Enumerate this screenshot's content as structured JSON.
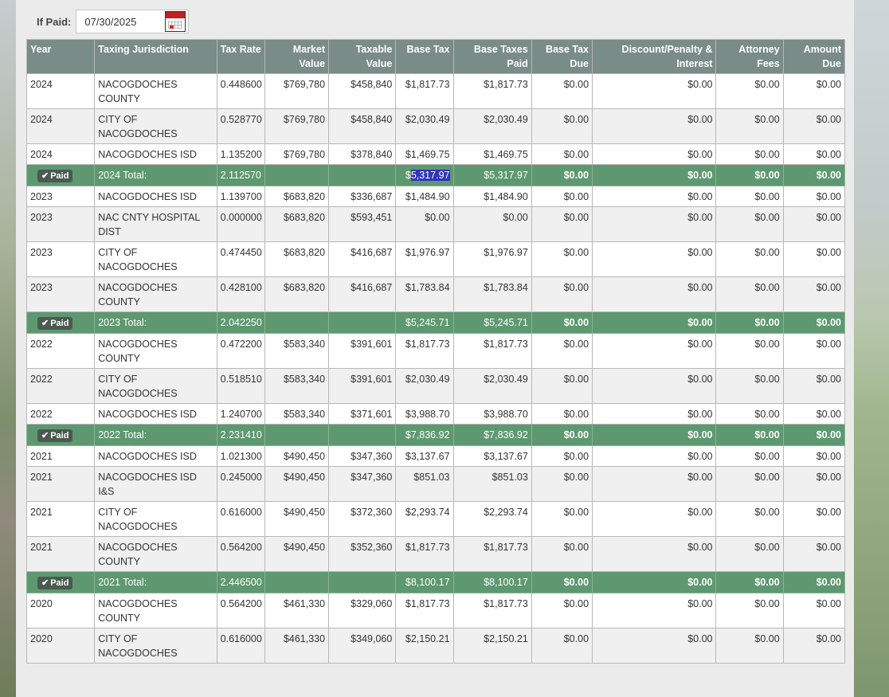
{
  "if_paid": {
    "label": "If Paid:",
    "date": "07/30/2025"
  },
  "columns": [
    "Year",
    "Taxing Jurisdiction",
    "Tax Rate",
    "Market Value",
    "Taxable Value",
    "Base Tax",
    "Base Taxes Paid",
    "Base Tax Due",
    "Discount/Penalty & Interest",
    "Attorney Fees",
    "Amount Due"
  ],
  "column_lines": [
    [
      "Year"
    ],
    [
      "Taxing Jurisdiction"
    ],
    [
      "Tax Rate"
    ],
    [
      "Market",
      "Value"
    ],
    [
      "Taxable",
      "Value"
    ],
    [
      "Base Tax"
    ],
    [
      "Base Taxes",
      "Paid"
    ],
    [
      "Base Tax",
      "Due"
    ],
    [
      "Discount/Penalty &",
      "Interest"
    ],
    [
      "Attorney",
      "Fees"
    ],
    [
      "Amount",
      "Due"
    ]
  ],
  "paid_badge": "Paid",
  "rows": [
    {
      "type": "data",
      "cells": [
        "2024",
        "NACOGDOCHES COUNTY",
        "0.448600",
        "$769,780",
        "$458,840",
        "$1,817.73",
        "$1,817.73",
        "$0.00",
        "$0.00",
        "$0.00",
        "$0.00"
      ]
    },
    {
      "type": "data",
      "cells": [
        "2024",
        "CITY OF NACOGDOCHES",
        "0.528770",
        "$769,780",
        "$458,840",
        "$2,030.49",
        "$2,030.49",
        "$0.00",
        "$0.00",
        "$0.00",
        "$0.00"
      ]
    },
    {
      "type": "data",
      "cells": [
        "2024",
        "NACOGDOCHES ISD",
        "1.135200",
        "$769,780",
        "$378,840",
        "$1,469.75",
        "$1,469.75",
        "$0.00",
        "$0.00",
        "$0.00",
        "$0.00"
      ]
    },
    {
      "type": "total",
      "cells": [
        "Paid",
        "2024 Total:",
        "2.112570",
        "",
        "",
        "$5,317.97",
        "$5,317.97",
        "$0.00",
        "$0.00",
        "$0.00",
        "$0.00"
      ],
      "highlight": true
    },
    {
      "type": "data",
      "cells": [
        "2023",
        "NACOGDOCHES ISD",
        "1.139700",
        "$683,820",
        "$336,687",
        "$1,484.90",
        "$1,484.90",
        "$0.00",
        "$0.00",
        "$0.00",
        "$0.00"
      ]
    },
    {
      "type": "data",
      "cells": [
        "2023",
        "NAC CNTY HOSPITAL DIST",
        "0.000000",
        "$683,820",
        "$593,451",
        "$0.00",
        "$0.00",
        "$0.00",
        "$0.00",
        "$0.00",
        "$0.00"
      ]
    },
    {
      "type": "data",
      "cells": [
        "2023",
        "CITY OF NACOGDOCHES",
        "0.474450",
        "$683,820",
        "$416,687",
        "$1,976.97",
        "$1,976.97",
        "$0.00",
        "$0.00",
        "$0.00",
        "$0.00"
      ]
    },
    {
      "type": "data",
      "cells": [
        "2023",
        "NACOGDOCHES COUNTY",
        "0.428100",
        "$683,820",
        "$416,687",
        "$1,783.84",
        "$1,783.84",
        "$0.00",
        "$0.00",
        "$0.00",
        "$0.00"
      ]
    },
    {
      "type": "total",
      "cells": [
        "Paid",
        "2023 Total:",
        "2.042250",
        "",
        "",
        "$5,245.71",
        "$5,245.71",
        "$0.00",
        "$0.00",
        "$0.00",
        "$0.00"
      ]
    },
    {
      "type": "data",
      "cells": [
        "2022",
        "NACOGDOCHES COUNTY",
        "0.472200",
        "$583,340",
        "$391,601",
        "$1,817.73",
        "$1,817.73",
        "$0.00",
        "$0.00",
        "$0.00",
        "$0.00"
      ]
    },
    {
      "type": "data",
      "cells": [
        "2022",
        "CITY OF NACOGDOCHES",
        "0.518510",
        "$583,340",
        "$391,601",
        "$2,030.49",
        "$2,030.49",
        "$0.00",
        "$0.00",
        "$0.00",
        "$0.00"
      ]
    },
    {
      "type": "data",
      "cells": [
        "2022",
        "NACOGDOCHES ISD",
        "1.240700",
        "$583,340",
        "$371,601",
        "$3,988.70",
        "$3,988.70",
        "$0.00",
        "$0.00",
        "$0.00",
        "$0.00"
      ]
    },
    {
      "type": "total",
      "cells": [
        "Paid",
        "2022 Total:",
        "2.231410",
        "",
        "",
        "$7,836.92",
        "$7,836.92",
        "$0.00",
        "$0.00",
        "$0.00",
        "$0.00"
      ]
    },
    {
      "type": "data",
      "cells": [
        "2021",
        "NACOGDOCHES ISD",
        "1.021300",
        "$490,450",
        "$347,360",
        "$3,137.67",
        "$3,137.67",
        "$0.00",
        "$0.00",
        "$0.00",
        "$0.00"
      ]
    },
    {
      "type": "data",
      "cells": [
        "2021",
        "NACOGDOCHES ISD I&S",
        "0.245000",
        "$490,450",
        "$347,360",
        "$851.03",
        "$851.03",
        "$0.00",
        "$0.00",
        "$0.00",
        "$0.00"
      ]
    },
    {
      "type": "data",
      "cells": [
        "2021",
        "CITY OF NACOGDOCHES",
        "0.616000",
        "$490,450",
        "$372,360",
        "$2,293.74",
        "$2,293.74",
        "$0.00",
        "$0.00",
        "$0.00",
        "$0.00"
      ]
    },
    {
      "type": "data",
      "cells": [
        "2021",
        "NACOGDOCHES COUNTY",
        "0.564200",
        "$490,450",
        "$352,360",
        "$1,817.73",
        "$1,817.73",
        "$0.00",
        "$0.00",
        "$0.00",
        "$0.00"
      ]
    },
    {
      "type": "total",
      "cells": [
        "Paid",
        "2021 Total:",
        "2.446500",
        "",
        "",
        "$8,100.17",
        "$8,100.17",
        "$0.00",
        "$0.00",
        "$0.00",
        "$0.00"
      ]
    },
    {
      "type": "data",
      "cells": [
        "2020",
        "NACOGDOCHES COUNTY",
        "0.564200",
        "$461,330",
        "$329,060",
        "$1,817.73",
        "$1,817.73",
        "$0.00",
        "$0.00",
        "$0.00",
        "$0.00"
      ]
    },
    {
      "type": "data",
      "cells": [
        "2020",
        "CITY OF NACOGDOCHES",
        "0.616000",
        "$461,330",
        "$349,060",
        "$2,150.21",
        "$2,150.21",
        "$0.00",
        "$0.00",
        "$0.00",
        "$0.00"
      ]
    }
  ],
  "colors": {
    "header_bg": "#7a8c88",
    "total_row_bg": "#5e9870",
    "paid_badge_bg": "#4b5a50",
    "selection": "#3333bb"
  },
  "icons": {
    "calendar": "calendar-icon",
    "check": "check-icon"
  }
}
